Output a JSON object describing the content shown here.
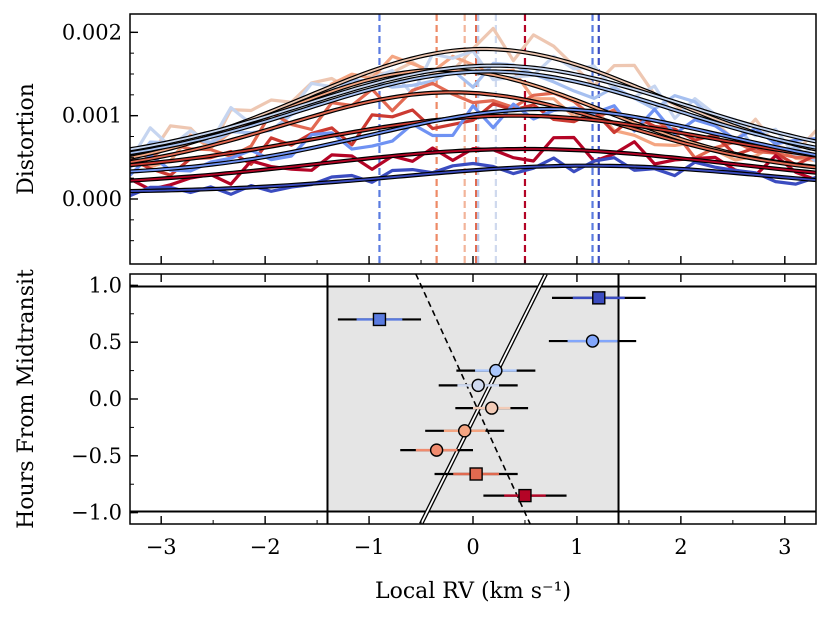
{
  "chart_data": [
    {
      "type": "line",
      "ylabel": "Distortion",
      "xlim": [
        -3.3,
        3.3
      ],
      "ylim": [
        -0.00078,
        0.00222
      ],
      "yticks": [
        0.0,
        0.001,
        0.002
      ],
      "ytick_labels": [
        "0.000",
        "0.001",
        "0.002"
      ],
      "grid": false,
      "vertical_lines": [
        {
          "x": -0.9,
          "color": "#5a7be0"
        },
        {
          "x": -0.35,
          "color": "#ee8a66"
        },
        {
          "x": -0.08,
          "color": "#f2b49a"
        },
        {
          "x": 0.03,
          "color": "#e06a50"
        },
        {
          "x": 0.05,
          "color": "#bccbec"
        },
        {
          "x": 0.22,
          "color": "#cfd9ee"
        },
        {
          "x": 0.5,
          "color": "#b40426"
        },
        {
          "x": 1.15,
          "color": "#5a7be0"
        },
        {
          "x": 1.21,
          "color": "#3b4cc0"
        }
      ],
      "series": [
        {
          "color": "#eec7b2",
          "noise": 0.00025,
          "seed": 1,
          "model": {
            "amp": 0.00145,
            "center": 0.1,
            "width": 2.4,
            "offset": 0.00035
          }
        },
        {
          "color": "#f4a582",
          "noise": 0.00022,
          "seed": 2,
          "model": {
            "amp": 0.00125,
            "center": -0.3,
            "width": 2.2,
            "offset": 0.0003
          }
        },
        {
          "color": "#c6d5f0",
          "noise": 0.00025,
          "seed": 3,
          "model": {
            "amp": 0.0012,
            "center": 0.2,
            "width": 2.6,
            "offset": 0.0004
          }
        },
        {
          "color": "#a6c0f0",
          "noise": 0.0002,
          "seed": 4,
          "model": {
            "amp": 0.00115,
            "center": 0.15,
            "width": 2.5,
            "offset": 0.00038
          }
        },
        {
          "color": "#e26952",
          "noise": 0.0002,
          "seed": 5,
          "model": {
            "amp": 0.001,
            "center": -0.2,
            "width": 2.3,
            "offset": 0.00028
          }
        },
        {
          "color": "#cc3a32",
          "noise": 0.00018,
          "seed": 6,
          "model": {
            "amp": 0.0007,
            "center": 0.4,
            "width": 2.7,
            "offset": 0.0003
          }
        },
        {
          "color": "#b40426",
          "noise": 0.00016,
          "seed": 7,
          "model": {
            "amp": 0.00045,
            "center": 0.5,
            "width": 2.8,
            "offset": 0.00015
          }
        },
        {
          "color": "#6f92f3",
          "noise": 0.00022,
          "seed": 8,
          "model": {
            "amp": 0.0008,
            "center": 0.7,
            "width": 2.4,
            "offset": 0.00028
          }
        },
        {
          "color": "#3b4cc0",
          "noise": 0.0001,
          "seed": 9,
          "model": {
            "amp": 0.00032,
            "center": 1.1,
            "width": 2.5,
            "offset": 8e-05
          }
        }
      ]
    },
    {
      "type": "scatter",
      "xlabel": "Local RV (km s⁻¹)",
      "ylabel": "Hours From Midtransit",
      "xlim": [
        -3.3,
        3.3
      ],
      "ylim": [
        -1.1,
        1.1
      ],
      "xticks": [
        -3,
        -2,
        -1,
        0,
        1,
        2,
        3
      ],
      "xtick_labels": [
        "−3",
        "−2",
        "−1",
        "0",
        "1",
        "2",
        "3"
      ],
      "yticks": [
        -1.0,
        -0.5,
        0.0,
        0.5,
        1.0
      ],
      "ytick_labels": [
        "−1.0",
        "−0.5",
        "0.0",
        "0.5",
        "1.0"
      ],
      "grid": false,
      "transit_region": {
        "x": [
          -1.4,
          1.4
        ],
        "y": [
          -0.99,
          0.99
        ],
        "fill": "#e5e5e5"
      },
      "dashed_model": {
        "x": [
          -0.55,
          0.55
        ],
        "y": [
          1.1,
          -1.1
        ]
      },
      "solid_model": {
        "x": [
          -0.5,
          0.7
        ],
        "y": [
          -1.1,
          1.1
        ]
      },
      "points": [
        {
          "x": 1.21,
          "y": 0.89,
          "xerr": 0.45,
          "color": "#3b4cc0",
          "marker": "square",
          "inner_err": 0.25
        },
        {
          "x": -0.9,
          "y": 0.7,
          "xerr": 0.4,
          "color": "#5a7be0",
          "marker": "square",
          "inner_err": 0.22
        },
        {
          "x": 1.15,
          "y": 0.51,
          "xerr": 0.42,
          "color": "#82a6fb",
          "marker": "circle",
          "inner_err": 0.24
        },
        {
          "x": 0.22,
          "y": 0.25,
          "xerr": 0.38,
          "color": "#aac7fd",
          "marker": "circle",
          "inner_err": 0.2
        },
        {
          "x": 0.05,
          "y": 0.12,
          "xerr": 0.38,
          "color": "#cfdaf0",
          "marker": "circle",
          "inner_err": 0.2
        },
        {
          "x": 0.18,
          "y": -0.08,
          "xerr": 0.35,
          "color": "#f2cbb7",
          "marker": "circle",
          "inner_err": 0.18
        },
        {
          "x": -0.08,
          "y": -0.28,
          "xerr": 0.38,
          "color": "#f4a582",
          "marker": "circle",
          "inner_err": 0.2
        },
        {
          "x": -0.35,
          "y": -0.45,
          "xerr": 0.35,
          "color": "#f08b6e",
          "marker": "circle",
          "inner_err": 0.2
        },
        {
          "x": 0.03,
          "y": -0.66,
          "xerr": 0.4,
          "color": "#e06a50",
          "marker": "square",
          "inner_err": 0.22
        },
        {
          "x": 0.5,
          "y": -0.85,
          "xerr": 0.4,
          "color": "#b40426",
          "marker": "square",
          "inner_err": 0.2
        }
      ]
    }
  ]
}
